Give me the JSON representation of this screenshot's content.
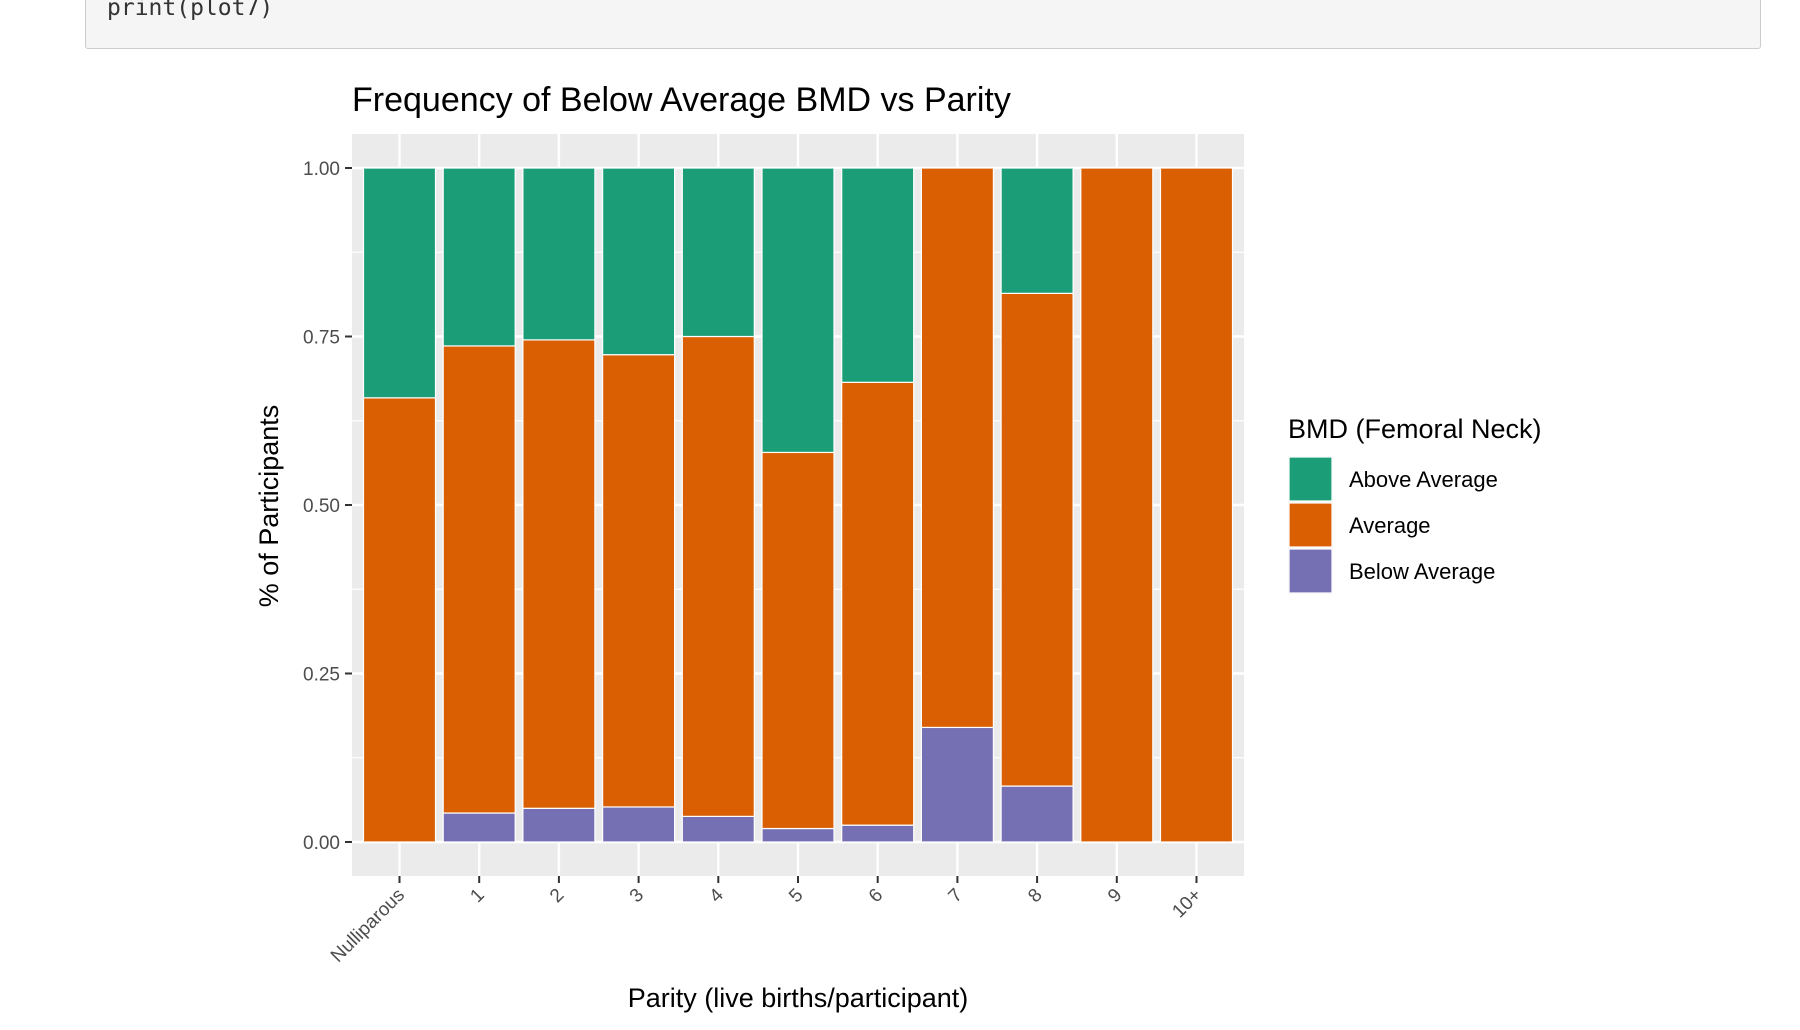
{
  "code": {
    "line": "print(plot7)"
  },
  "chart_data": {
    "type": "bar",
    "stacked": true,
    "title": "Frequency of Below Average BMD vs Parity",
    "xlabel": "Parity (live births/participant)",
    "ylabel": "% of Participants",
    "ylim": [
      0,
      1
    ],
    "yticks": [
      "0.00",
      "0.25",
      "0.50",
      "0.75",
      "1.00"
    ],
    "grid": true,
    "legend_position": "right",
    "legend_title": "BMD (Femoral Neck)",
    "categories": [
      "Nulliparous",
      "1",
      "2",
      "3",
      "4",
      "5",
      "6",
      "7",
      "8",
      "9",
      "10+"
    ],
    "series": [
      {
        "name": "Below Average",
        "color": "#7570b3",
        "values": [
          0.0,
          0.043,
          0.05,
          0.052,
          0.038,
          0.02,
          0.025,
          0.17,
          0.083,
          0.0,
          0.0
        ]
      },
      {
        "name": "Average",
        "color": "#d95f02",
        "values": [
          0.659,
          0.693,
          0.695,
          0.671,
          0.712,
          0.558,
          0.657,
          0.83,
          0.731,
          1.0,
          1.0
        ]
      },
      {
        "name": "Above Average",
        "color": "#1b9e77",
        "values": [
          0.341,
          0.264,
          0.255,
          0.277,
          0.25,
          0.422,
          0.318,
          0.0,
          0.186,
          0.0,
          0.0
        ]
      }
    ],
    "legend_order": [
      "Above Average",
      "Average",
      "Below Average"
    ]
  }
}
